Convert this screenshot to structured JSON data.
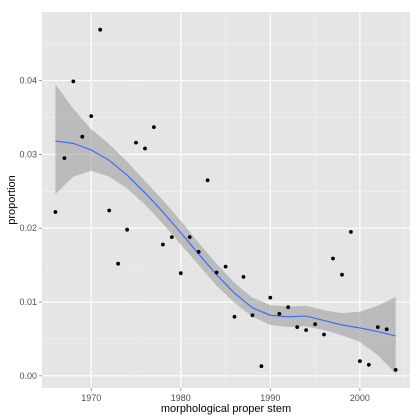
{
  "chart_data": {
    "type": "scatter",
    "title": "",
    "xlabel": "morphological proper stem",
    "ylabel": "proportion",
    "xlim": [
      1964.5,
      2005.6
    ],
    "ylim": [
      -0.00165,
      0.0493
    ],
    "x_ticks": [
      1970,
      1980,
      1990,
      2000
    ],
    "y_ticks": [
      0.0,
      0.01,
      0.02,
      0.03,
      0.04
    ],
    "y_tick_labels": [
      "0.00",
      "0.01",
      "0.02",
      "0.03",
      "0.04"
    ],
    "grid": true,
    "legend": "none",
    "colors": {
      "panel": "#e5e5e5",
      "grid_major": "#ffffff",
      "grid_minor": "#f2f2f2",
      "point": "#000000",
      "smooth_line": "#3366ff",
      "ribbon": "#999999"
    },
    "points": {
      "x": [
        1966,
        1967,
        1968,
        1969,
        1970,
        1971,
        1972,
        1973,
        1974,
        1975,
        1976,
        1977,
        1978,
        1979,
        1980,
        1981,
        1982,
        1983,
        1984,
        1985,
        1986,
        1987,
        1988,
        1989,
        1990,
        1991,
        1992,
        1993,
        1994,
        1995,
        1996,
        1997,
        1998,
        1999,
        2000,
        2001,
        2002,
        2003,
        2004
      ],
      "y": [
        0.0222,
        0.0295,
        0.0399,
        0.0324,
        0.0352,
        0.0469,
        0.0224,
        0.0152,
        0.0198,
        0.0316,
        0.0308,
        0.0337,
        0.0178,
        0.0188,
        0.0139,
        0.0188,
        0.0168,
        0.0265,
        0.014,
        0.0148,
        0.008,
        0.0134,
        0.0082,
        0.0013,
        0.0106,
        0.0084,
        0.0093,
        0.0066,
        0.0062,
        0.007,
        0.0056,
        0.0159,
        0.0137,
        0.0195,
        0.002,
        0.0015,
        0.0066,
        0.0063,
        0.0008
      ]
    },
    "smooth": {
      "x": [
        1966,
        1968,
        1970,
        1972,
        1974,
        1976,
        1978,
        1980,
        1982,
        1984,
        1986,
        1988,
        1990,
        1992,
        1994,
        1996,
        1998,
        2000,
        2002,
        2004
      ],
      "y": [
        0.0318,
        0.0315,
        0.0306,
        0.0292,
        0.0272,
        0.0248,
        0.0222,
        0.0194,
        0.0165,
        0.0137,
        0.0112,
        0.0092,
        0.0082,
        0.008,
        0.0081,
        0.0075,
        0.0069,
        0.0065,
        0.006,
        0.0054
      ],
      "lower": [
        0.0246,
        0.027,
        0.0278,
        0.027,
        0.0254,
        0.0232,
        0.0206,
        0.0178,
        0.015,
        0.0122,
        0.0099,
        0.008,
        0.0069,
        0.0066,
        0.0067,
        0.0062,
        0.0055,
        0.0046,
        0.0028,
        0.0003
      ],
      "upper": [
        0.0395,
        0.0362,
        0.0334,
        0.0314,
        0.029,
        0.0264,
        0.0238,
        0.021,
        0.018,
        0.0152,
        0.0126,
        0.0106,
        0.0096,
        0.0094,
        0.0095,
        0.0089,
        0.0085,
        0.0087,
        0.0095,
        0.0107
      ]
    }
  }
}
